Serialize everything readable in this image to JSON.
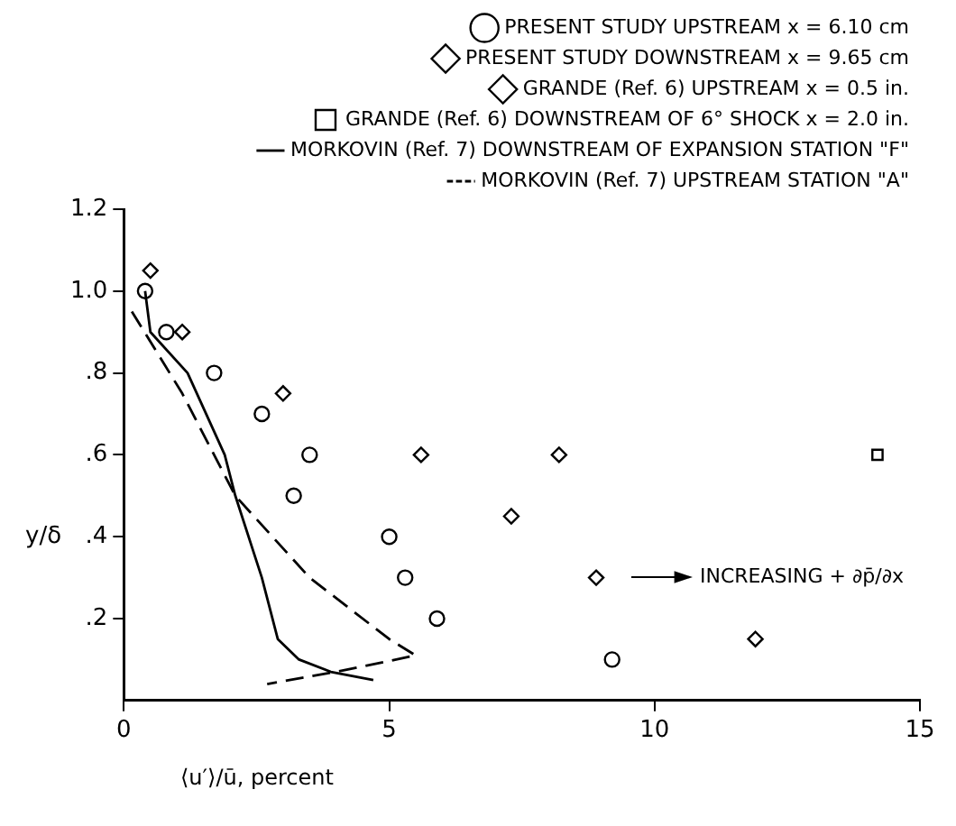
{
  "chart_data": {
    "type": "scatter",
    "xlabel": "⟨u′⟩/ū, percent",
    "ylabel": "y/δ",
    "xlim": [
      0,
      15
    ],
    "xticks": [
      0,
      5,
      10,
      15
    ],
    "ylim": [
      0,
      1.2
    ],
    "yticks": [
      {
        "value": 0.2,
        "label": ".2"
      },
      {
        "value": 0.4,
        "label": ".4"
      },
      {
        "value": 0.6,
        "label": ".6"
      },
      {
        "value": 0.8,
        "label": ".8"
      },
      {
        "value": 1,
        "label": "1.0"
      },
      {
        "value": 1.2,
        "label": "1.2"
      }
    ],
    "grid": false,
    "legend": "top right",
    "annotations": [
      "INCREASING + ∂p̄/∂x"
    ],
    "series": [
      {
        "name": "PRESENT STUDY UPSTREAM x = 6.10 cm",
        "type": "scatter",
        "marker": "circle",
        "color": "#000000",
        "x": [
          0.4,
          0.8,
          1.7,
          2.6,
          3.5,
          3.2,
          5.0,
          5.3,
          5.9,
          9.2
        ],
        "values": [
          1.0,
          0.9,
          0.8,
          0.7,
          0.6,
          0.5,
          0.4,
          0.3,
          0.2,
          0.1
        ]
      },
      {
        "name": "PRESENT STUDY DOWNSTREAM x = 9.65 cm",
        "type": "scatter",
        "marker": "diamond",
        "color": "#000000",
        "x": [
          0.5,
          1.1,
          3.0,
          5.6,
          7.3,
          8.9,
          11.9
        ],
        "values": [
          1.05,
          0.9,
          0.75,
          0.6,
          0.45,
          0.3,
          0.15
        ]
      },
      {
        "name": "GRANDE (Ref. 6) UPSTREAM x = 0.5 in.",
        "type": "scatter",
        "marker": "diamond",
        "color": "#000000",
        "x": [
          8.2
        ],
        "values": [
          0.6
        ]
      },
      {
        "name": "GRANDE (Ref. 6) DOWNSTREAM OF 6° SHOCK x = 2.0 in.",
        "type": "scatter",
        "marker": "square",
        "color": "#000000",
        "x": [
          14.2
        ],
        "values": [
          0.6
        ]
      },
      {
        "name": "MORKOVIN (Ref. 7) DOWNSTREAM OF EXPANSION STATION \"F\"",
        "type": "line",
        "line_style": "solid",
        "color": "#000000",
        "x": [
          0.4,
          0.5,
          1.2,
          1.9,
          2.1,
          2.6,
          2.9,
          3.3,
          3.9,
          4.7
        ],
        "values": [
          1.0,
          0.9,
          0.8,
          0.6,
          0.5,
          0.3,
          0.15,
          0.1,
          0.07,
          0.05
        ]
      },
      {
        "name": "MORKOVIN (Ref. 7) UPSTREAM STATION \"A\"",
        "type": "line",
        "line_style": "dashed",
        "color": "#000000",
        "x": [
          0.15,
          1.1,
          2.1,
          3.5,
          5.0,
          5.5,
          4.0,
          2.7
        ],
        "values": [
          0.95,
          0.75,
          0.5,
          0.3,
          0.15,
          0.11,
          0.07,
          0.04
        ]
      }
    ]
  }
}
